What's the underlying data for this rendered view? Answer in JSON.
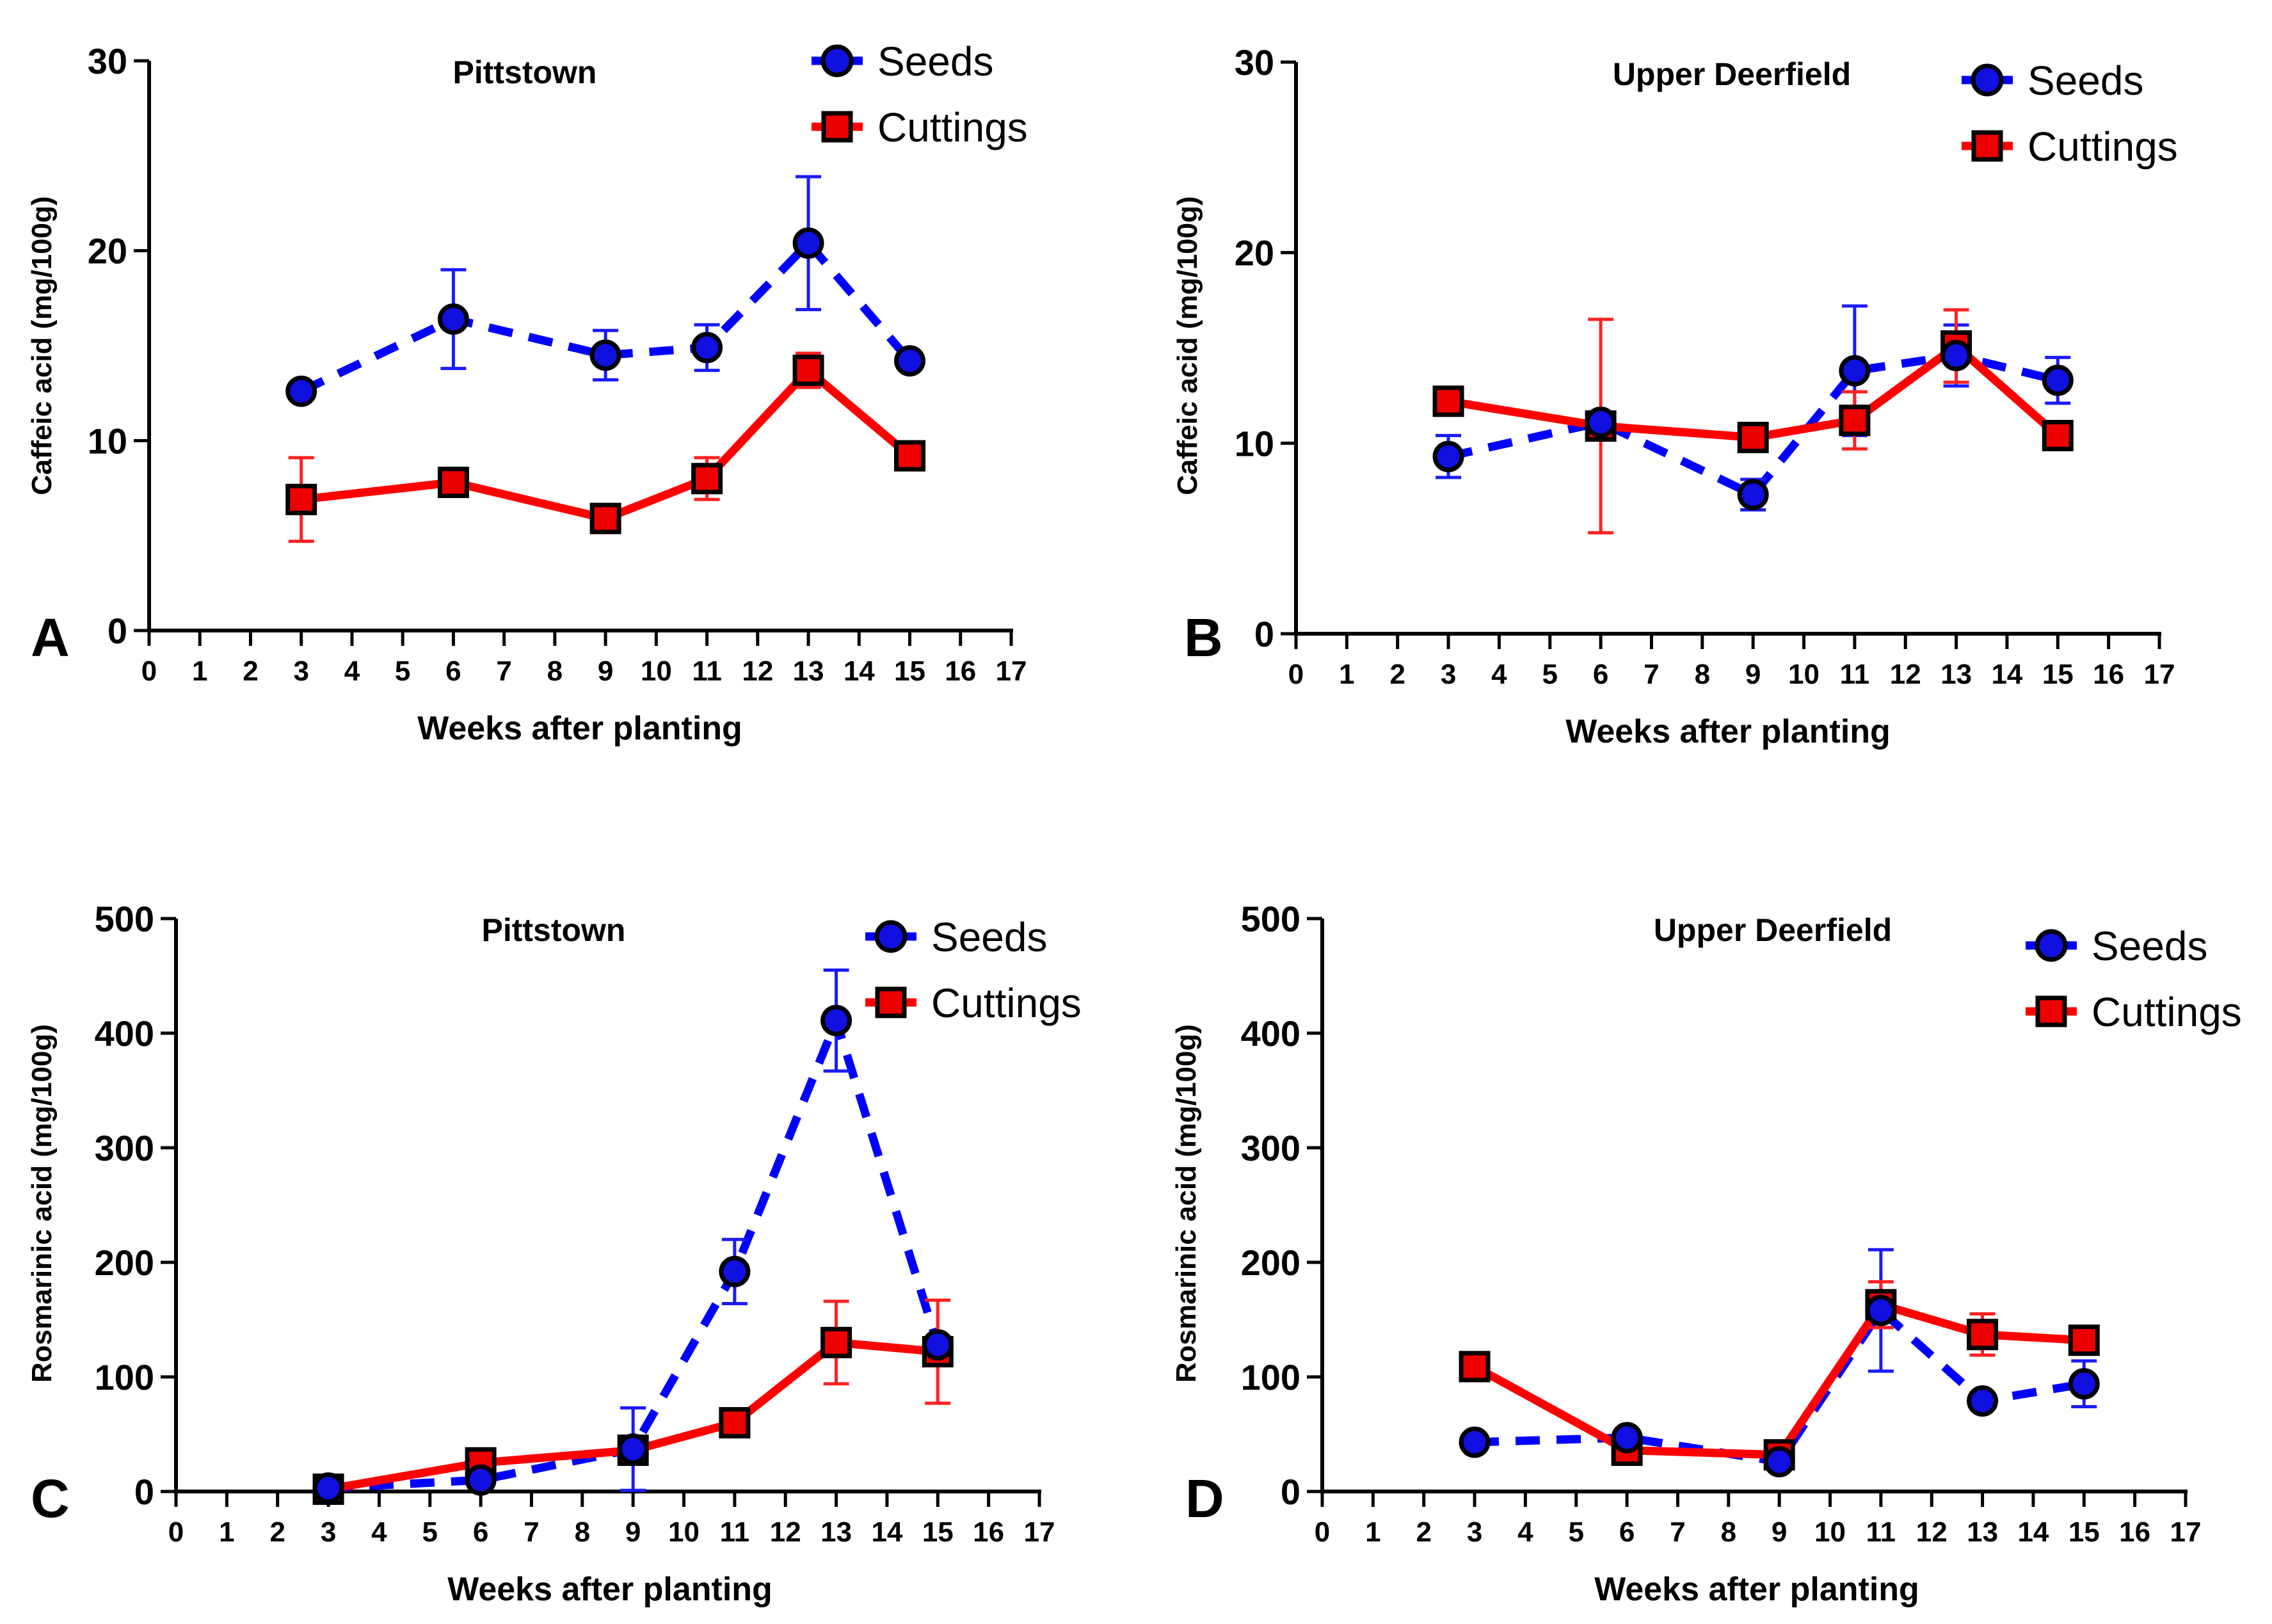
{
  "colors": {
    "seeds": "#0000ff",
    "seeds_fill": "#1010e0",
    "cuttings": "#ff0000",
    "cuttings_fill": "#ee0000",
    "seeds_err": "#1a1aff",
    "cuttings_err": "#ff2020"
  },
  "chart_data": [
    {
      "type": "line",
      "panel_letter": "A",
      "title": "Pittstown",
      "xlabel": "Weeks after planting",
      "ylabel": "Caffeic acid (mg/100g)",
      "xlim": [
        0,
        17
      ],
      "ylim": [
        0,
        30
      ],
      "x_ticks": [
        "0",
        "1",
        "2",
        "3",
        "4",
        "5",
        "6",
        "7",
        "8",
        "9",
        "10",
        "11",
        "12",
        "13",
        "14",
        "15",
        "16",
        "17"
      ],
      "y_ticks": [
        0,
        10,
        20,
        30
      ],
      "y_tick_labels": [
        "0",
        "10",
        "20",
        "30"
      ],
      "legend": [
        "Seeds",
        "Cuttings"
      ],
      "legend_position": "top-right",
      "series": [
        {
          "name": "Seeds",
          "x": [
            3,
            6,
            9,
            11,
            13,
            15
          ],
          "values": [
            12.6,
            16.4,
            14.5,
            14.9,
            20.4,
            14.2
          ],
          "error": [
            0.3,
            2.6,
            1.3,
            1.2,
            3.5,
            0.3
          ]
        },
        {
          "name": "Cuttings",
          "x": [
            3,
            6,
            9,
            11,
            13,
            15
          ],
          "values": [
            6.9,
            7.8,
            5.9,
            8.0,
            13.7,
            9.2
          ],
          "error": [
            2.2,
            0.3,
            0.3,
            1.1,
            0.9,
            0.3
          ]
        }
      ]
    },
    {
      "type": "line",
      "panel_letter": "B",
      "title": "Upper Deerfield",
      "xlabel": "Weeks after planting",
      "ylabel": "Caffeic acid (mg/100g)",
      "xlim": [
        0,
        17
      ],
      "ylim": [
        0,
        30
      ],
      "x_ticks": [
        "0",
        "1",
        "2",
        "3",
        "4",
        "5",
        "6",
        "7",
        "8",
        "9",
        "10",
        "11",
        "12",
        "13",
        "14",
        "15",
        "16",
        "17"
      ],
      "y_ticks": [
        0,
        10,
        20,
        30
      ],
      "y_tick_labels": [
        "0",
        "10",
        "20",
        "30"
      ],
      "legend": [
        "Seeds",
        "Cuttings"
      ],
      "legend_position": "top-right",
      "series": [
        {
          "name": "Seeds",
          "x": [
            3,
            6,
            9,
            11,
            13,
            15
          ],
          "values": [
            9.3,
            11.1,
            7.3,
            13.8,
            14.6,
            13.3
          ],
          "error": [
            1.1,
            0.4,
            0.8,
            3.4,
            1.6,
            1.2
          ]
        },
        {
          "name": "Cuttings",
          "x": [
            3,
            6,
            9,
            11,
            13,
            15
          ],
          "values": [
            12.2,
            10.9,
            10.3,
            11.2,
            15.1,
            10.4
          ],
          "error": [
            0.3,
            5.6,
            0.3,
            1.5,
            1.9,
            0.3
          ]
        }
      ]
    },
    {
      "type": "line",
      "panel_letter": "C",
      "title": "Pittstown",
      "xlabel": "Weeks after planting",
      "ylabel": "Rosmarinic acid (mg/100g)",
      "xlim": [
        0,
        17
      ],
      "ylim": [
        0,
        500
      ],
      "x_ticks": [
        "0",
        "1",
        "2",
        "3",
        "4",
        "5",
        "6",
        "7",
        "8",
        "9",
        "10",
        "11",
        "12",
        "13",
        "14",
        "15",
        "16",
        "17"
      ],
      "y_ticks": [
        0,
        100,
        200,
        300,
        400,
        500
      ],
      "y_tick_labels": [
        "0",
        "100",
        "200",
        "300",
        "400",
        "500"
      ],
      "legend": [
        "Seeds",
        "Cuttings"
      ],
      "legend_position": "top-right",
      "series": [
        {
          "name": "Seeds",
          "x": [
            3,
            6,
            9,
            11,
            13,
            15
          ],
          "values": [
            3,
            10,
            37,
            192,
            411,
            128
          ],
          "error": [
            2,
            3,
            36,
            28,
            44,
            5
          ]
        },
        {
          "name": "Cuttings",
          "x": [
            3,
            6,
            9,
            11,
            13,
            15
          ],
          "values": [
            2,
            25,
            36,
            60,
            130,
            122
          ],
          "error": [
            2,
            4,
            4,
            5,
            36,
            45
          ]
        }
      ]
    },
    {
      "type": "line",
      "panel_letter": "D",
      "title": "Upper Deerfield",
      "xlabel": "Weeks after planting",
      "ylabel": "Rosmarinic acid (mg/100g)",
      "xlim": [
        0,
        17
      ],
      "ylim": [
        0,
        500
      ],
      "x_ticks": [
        "0",
        "1",
        "2",
        "3",
        "4",
        "5",
        "6",
        "7",
        "8",
        "9",
        "10",
        "11",
        "12",
        "13",
        "14",
        "15",
        "16",
        "17"
      ],
      "y_ticks": [
        0,
        100,
        200,
        300,
        400,
        500
      ],
      "y_tick_labels": [
        "0",
        "100",
        "200",
        "300",
        "400",
        "500"
      ],
      "legend": [
        "Seeds",
        "Cuttings"
      ],
      "legend_position": "top-right",
      "series": [
        {
          "name": "Seeds",
          "x": [
            3,
            6,
            9,
            11,
            13,
            15
          ],
          "values": [
            43,
            47,
            26,
            158,
            79,
            94
          ],
          "error": [
            3,
            3,
            4,
            53,
            4,
            20
          ]
        },
        {
          "name": "Cuttings",
          "x": [
            3,
            6,
            9,
            11,
            13,
            15
          ],
          "values": [
            109,
            36,
            32,
            163,
            137,
            132
          ],
          "error": [
            3,
            10,
            4,
            20,
            18,
            4
          ]
        }
      ]
    }
  ]
}
